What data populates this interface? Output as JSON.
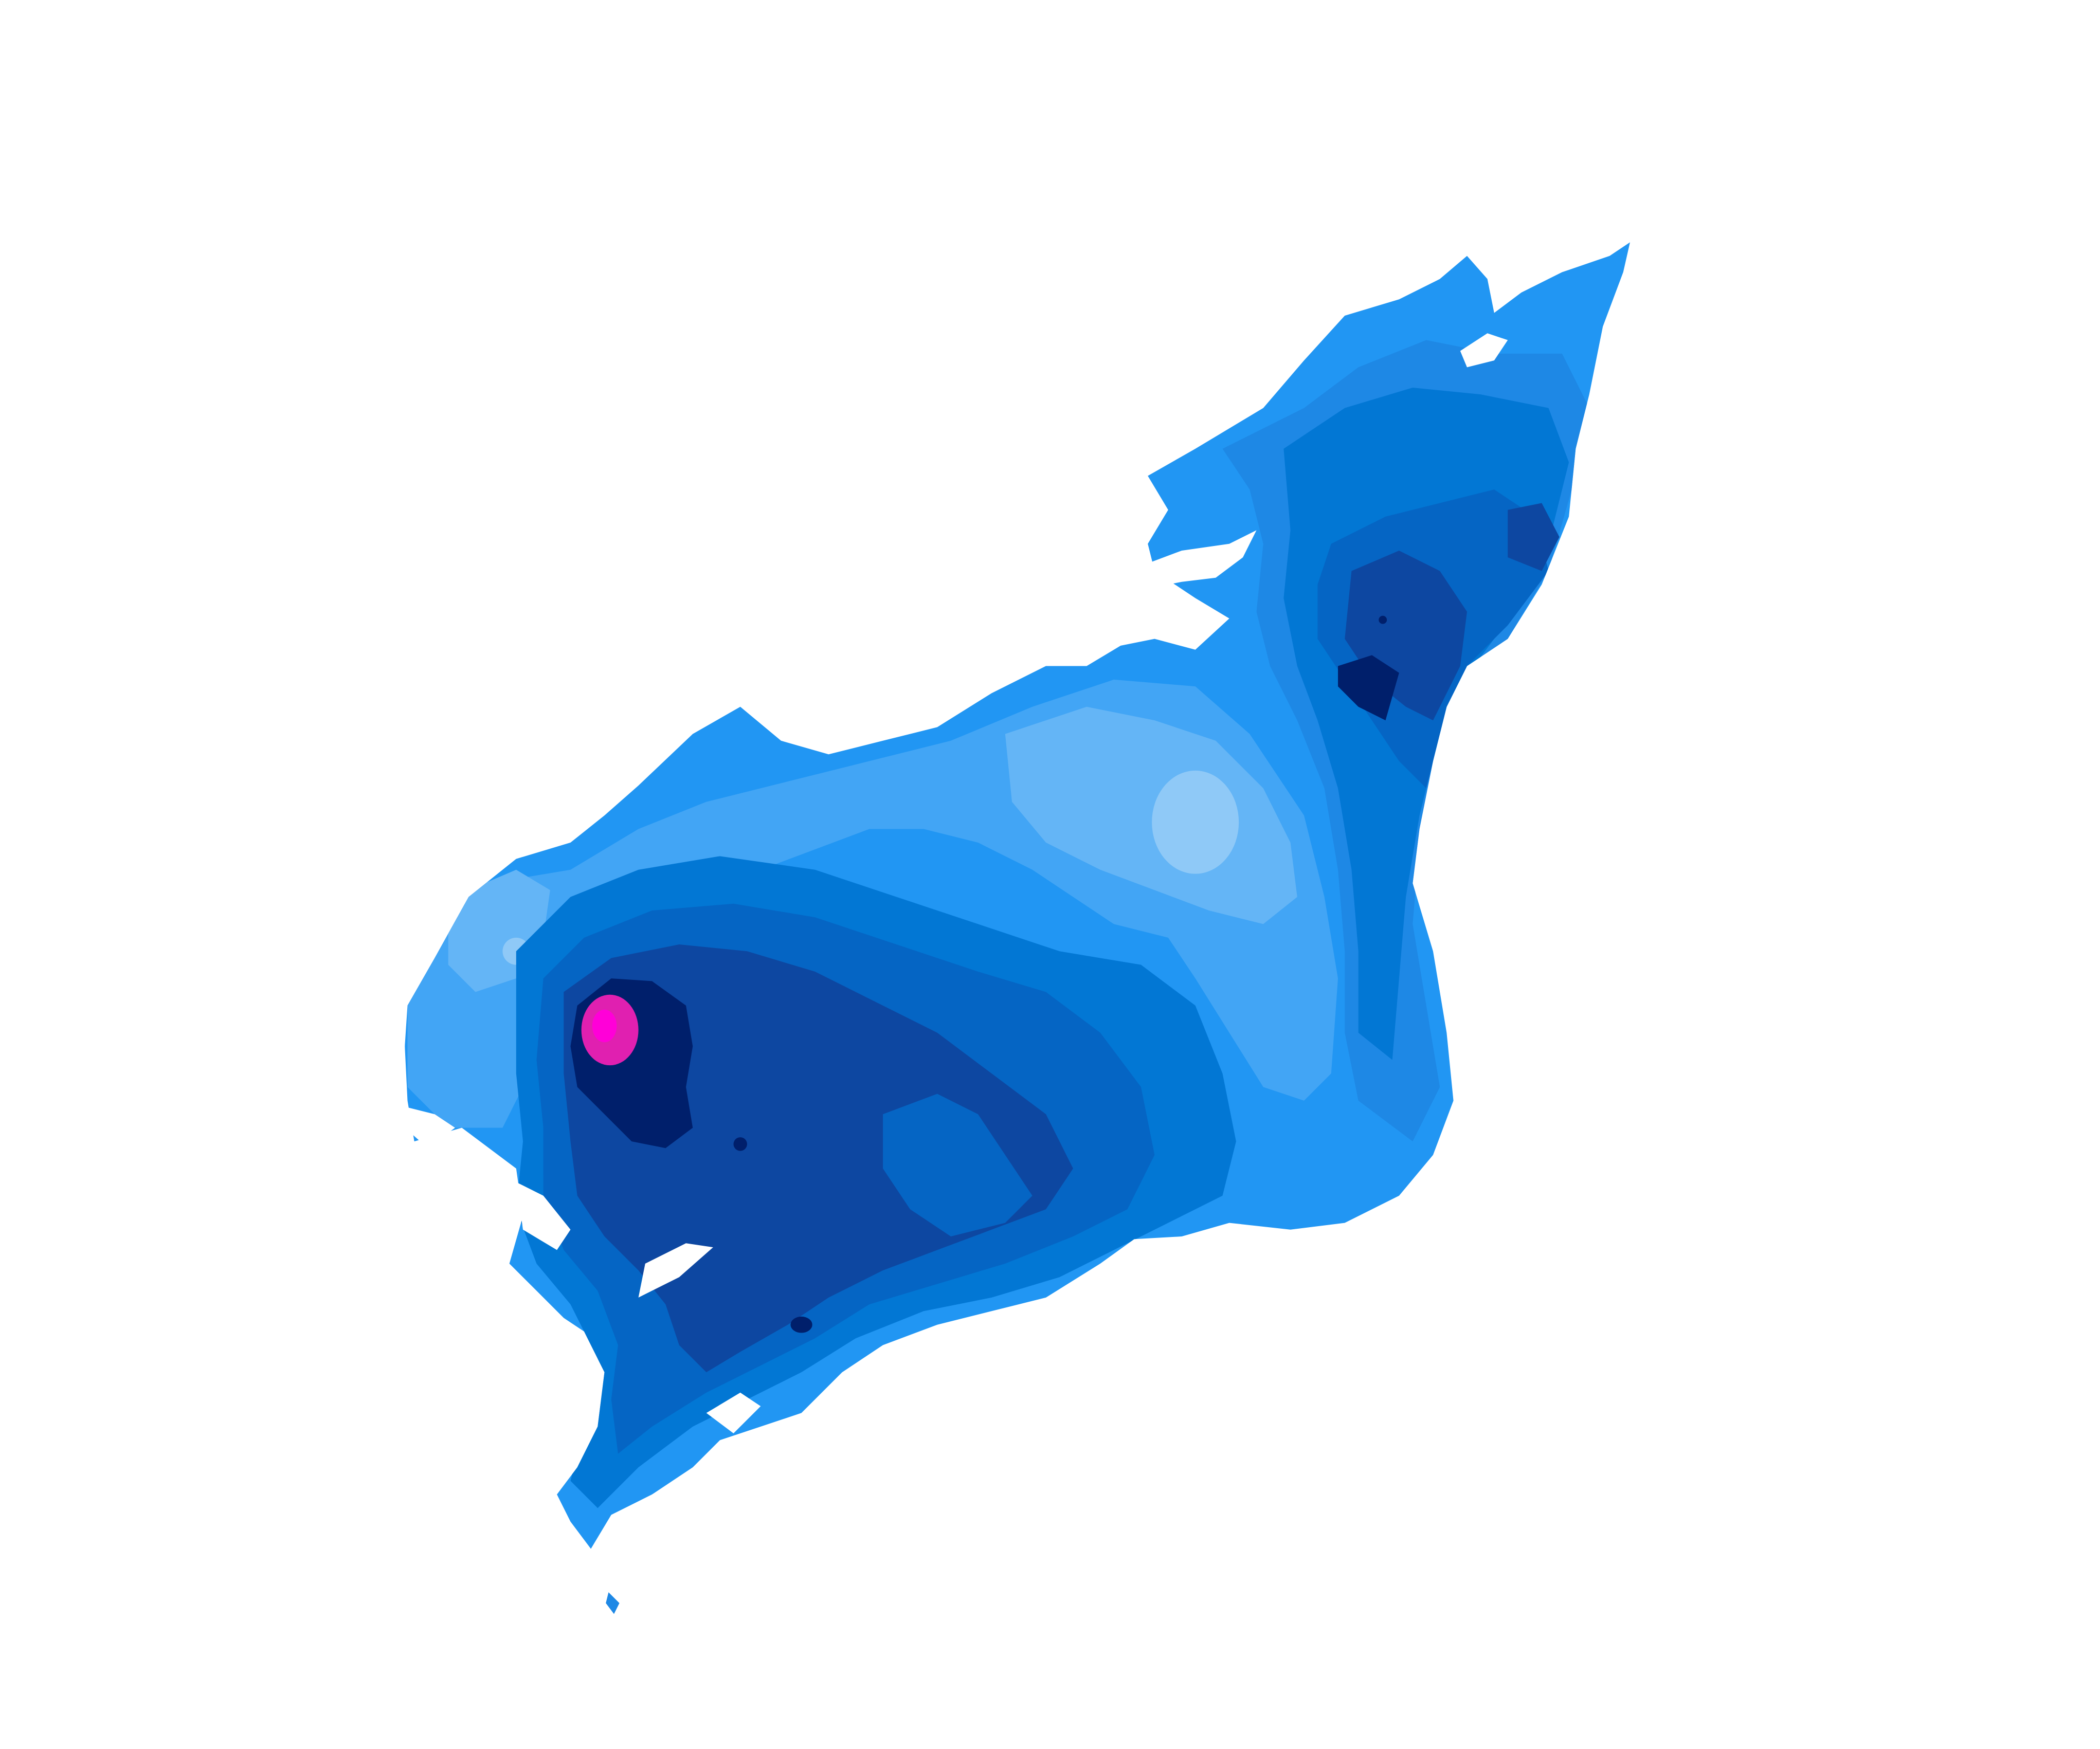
{
  "map": {
    "palette": {
      "lightest": "#8fc9f7",
      "very_light": "#64b5f6",
      "light": "#42a5f5",
      "medium_light": "#2196f3",
      "medium": "#1e88e5",
      "medium_dark": "#0277d4",
      "dark": "#0565c4",
      "darker": "#0d47a1",
      "deep": "#0a3a9a",
      "darkest": "#001f6b",
      "peak_outer": "#e020b0",
      "peak_inner": "#ff00d8"
    },
    "background": "#ffffff",
    "legend": null
  }
}
